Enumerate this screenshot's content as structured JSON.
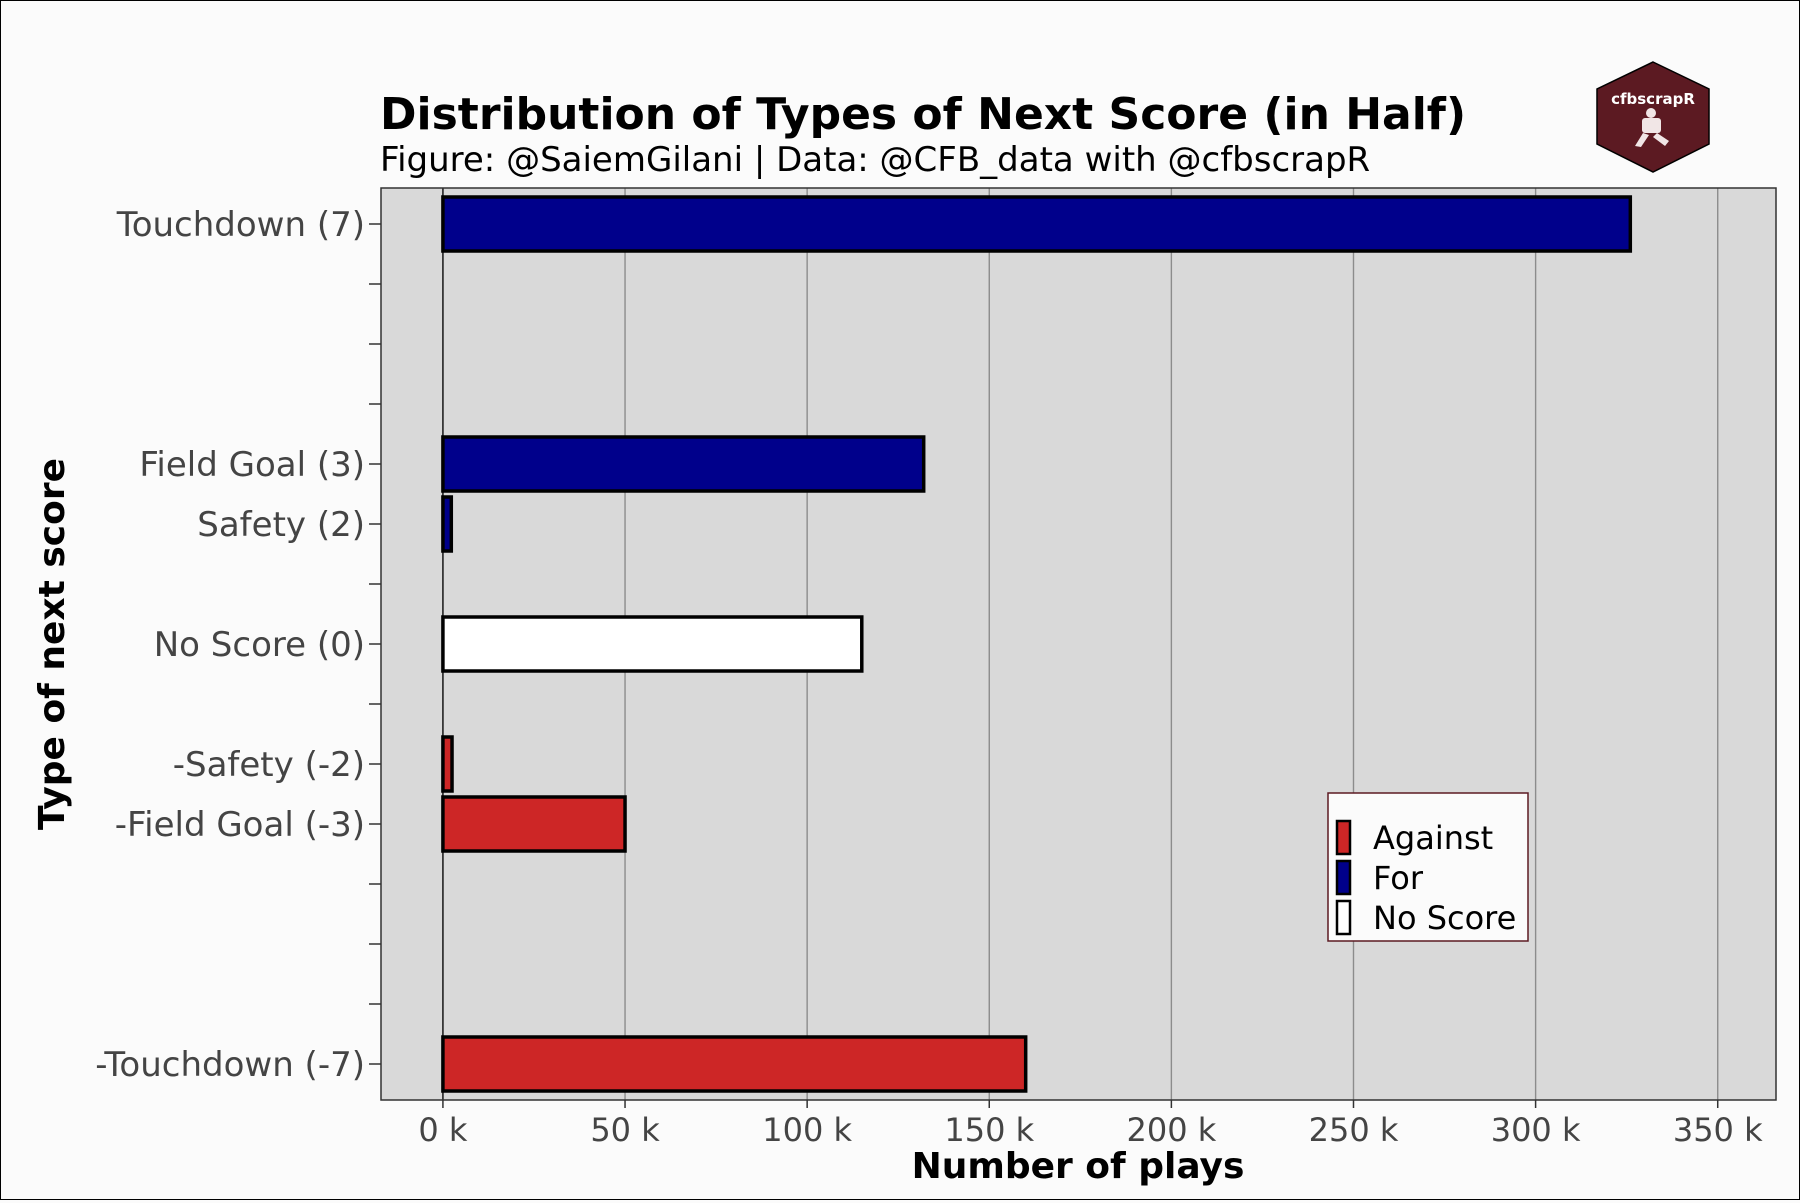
{
  "chart_data": {
    "type": "bar",
    "orientation": "horizontal",
    "title": "Distribution of Types of Next Score (in Half)",
    "subtitle": "Figure: @SaiemGilani | Data: @CFB_data with @cfbscrapR",
    "xlabel": "Number of plays",
    "ylabel": "Type of next score",
    "xlim": [
      -17000,
      366000
    ],
    "ylim": [
      -7.6,
      7.6
    ],
    "x_ticks": [
      0,
      50000,
      100000,
      150000,
      200000,
      250000,
      300000,
      350000
    ],
    "x_tick_labels": [
      "0 k",
      "50 k",
      "100 k",
      "150 k",
      "200 k",
      "250 k",
      "300 k",
      "350 k"
    ],
    "y_minor_ticks": [
      6,
      5,
      4,
      1,
      -1,
      -4,
      -5,
      -6
    ],
    "grid": "vertical",
    "bars": [
      {
        "label": "Touchdown (7)",
        "y": 7,
        "value": 326000,
        "group": "For"
      },
      {
        "label": "Field Goal (3)",
        "y": 3,
        "value": 132000,
        "group": "For"
      },
      {
        "label": "Safety (2)",
        "y": 2,
        "value": 2300,
        "group": "For"
      },
      {
        "label": "No Score (0)",
        "y": 0,
        "value": 115000,
        "group": "No Score"
      },
      {
        "label": "-Safety (-2)",
        "y": -2,
        "value": 2500,
        "group": "Against"
      },
      {
        "label": "-Field Goal (-3)",
        "y": -3,
        "value": 50000,
        "group": "Against"
      },
      {
        "label": "-Touchdown (-7)",
        "y": -7,
        "value": 160000,
        "group": "Against"
      }
    ],
    "legend": {
      "position": "bottom-right",
      "entries": [
        {
          "name": "Against",
          "color": "#cd2626"
        },
        {
          "name": "For",
          "color": "#00008b"
        },
        {
          "name": "No Score",
          "color": "#ffffff"
        }
      ]
    },
    "colors": {
      "panel_background": "#d9d9d9",
      "grid": "#8c8c8c",
      "bar_outline": "#000000",
      "logo": "#5c1a22"
    }
  },
  "logo": {
    "text": "cfbscrapR"
  }
}
